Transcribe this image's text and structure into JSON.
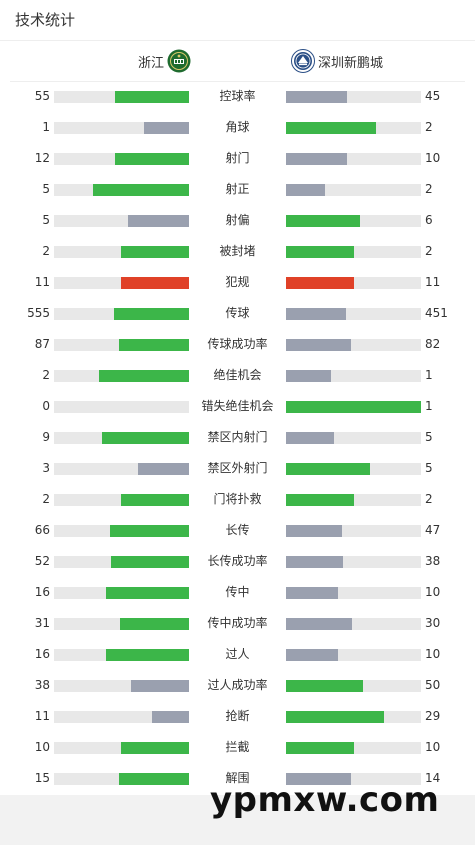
{
  "header": {
    "title": "技术统计"
  },
  "teams": {
    "home": {
      "name": "浙江"
    },
    "away": {
      "name": "深圳新鹏城"
    }
  },
  "colors": {
    "leader": "#3cb649",
    "trailer": "#9aa0af",
    "foul": "#e04128",
    "track": "#e8e8e8"
  },
  "stats": [
    {
      "label": "控球率",
      "home": "55",
      "away": "45",
      "home_share": 0.55,
      "away_share": 0.45
    },
    {
      "label": "角球",
      "home": "1",
      "away": "2",
      "home_share": 0.333,
      "away_share": 0.667
    },
    {
      "label": "射门",
      "home": "12",
      "away": "10",
      "home_share": 0.545,
      "away_share": 0.455
    },
    {
      "label": "射正",
      "home": "5",
      "away": "2",
      "home_share": 0.714,
      "away_share": 0.286
    },
    {
      "label": "射偏",
      "home": "5",
      "away": "6",
      "home_share": 0.455,
      "away_share": 0.545
    },
    {
      "label": "被封堵",
      "home": "2",
      "away": "2",
      "home_share": 0.5,
      "away_share": 0.5
    },
    {
      "label": "犯规",
      "home": "11",
      "away": "11",
      "home_share": 0.5,
      "away_share": 0.5
    },
    {
      "label": "传球",
      "home": "555",
      "away": "451",
      "home_share": 0.552,
      "away_share": 0.448
    },
    {
      "label": "传球成功率",
      "home": "87",
      "away": "82",
      "home_share": 0.515,
      "away_share": 0.485
    },
    {
      "label": "绝佳机会",
      "home": "2",
      "away": "1",
      "home_share": 0.667,
      "away_share": 0.333
    },
    {
      "label": "错失绝佳机会",
      "home": "0",
      "away": "1",
      "home_share": 0.0,
      "away_share": 1.0
    },
    {
      "label": "禁区内射门",
      "home": "9",
      "away": "5",
      "home_share": 0.643,
      "away_share": 0.357
    },
    {
      "label": "禁区外射门",
      "home": "3",
      "away": "5",
      "home_share": 0.375,
      "away_share": 0.625
    },
    {
      "label": "门将扑救",
      "home": "2",
      "away": "2",
      "home_share": 0.5,
      "away_share": 0.5
    },
    {
      "label": "长传",
      "home": "66",
      "away": "47",
      "home_share": 0.584,
      "away_share": 0.416
    },
    {
      "label": "长传成功率",
      "home": "52",
      "away": "38",
      "home_share": 0.578,
      "away_share": 0.422
    },
    {
      "label": "传中",
      "home": "16",
      "away": "10",
      "home_share": 0.615,
      "away_share": 0.385
    },
    {
      "label": "传中成功率",
      "home": "31",
      "away": "30",
      "home_share": 0.508,
      "away_share": 0.492
    },
    {
      "label": "过人",
      "home": "16",
      "away": "10",
      "home_share": 0.615,
      "away_share": 0.385
    },
    {
      "label": "过人成功率",
      "home": "38",
      "away": "50",
      "home_share": 0.432,
      "away_share": 0.568
    },
    {
      "label": "抢断",
      "home": "11",
      "away": "29",
      "home_share": 0.275,
      "away_share": 0.725
    },
    {
      "label": "拦截",
      "home": "10",
      "away": "10",
      "home_share": 0.5,
      "away_share": 0.5
    },
    {
      "label": "解围",
      "home": "15",
      "away": "14",
      "home_share": 0.517,
      "away_share": 0.483
    }
  ],
  "foul_label": "犯规",
  "watermark": "ypmxw.com"
}
